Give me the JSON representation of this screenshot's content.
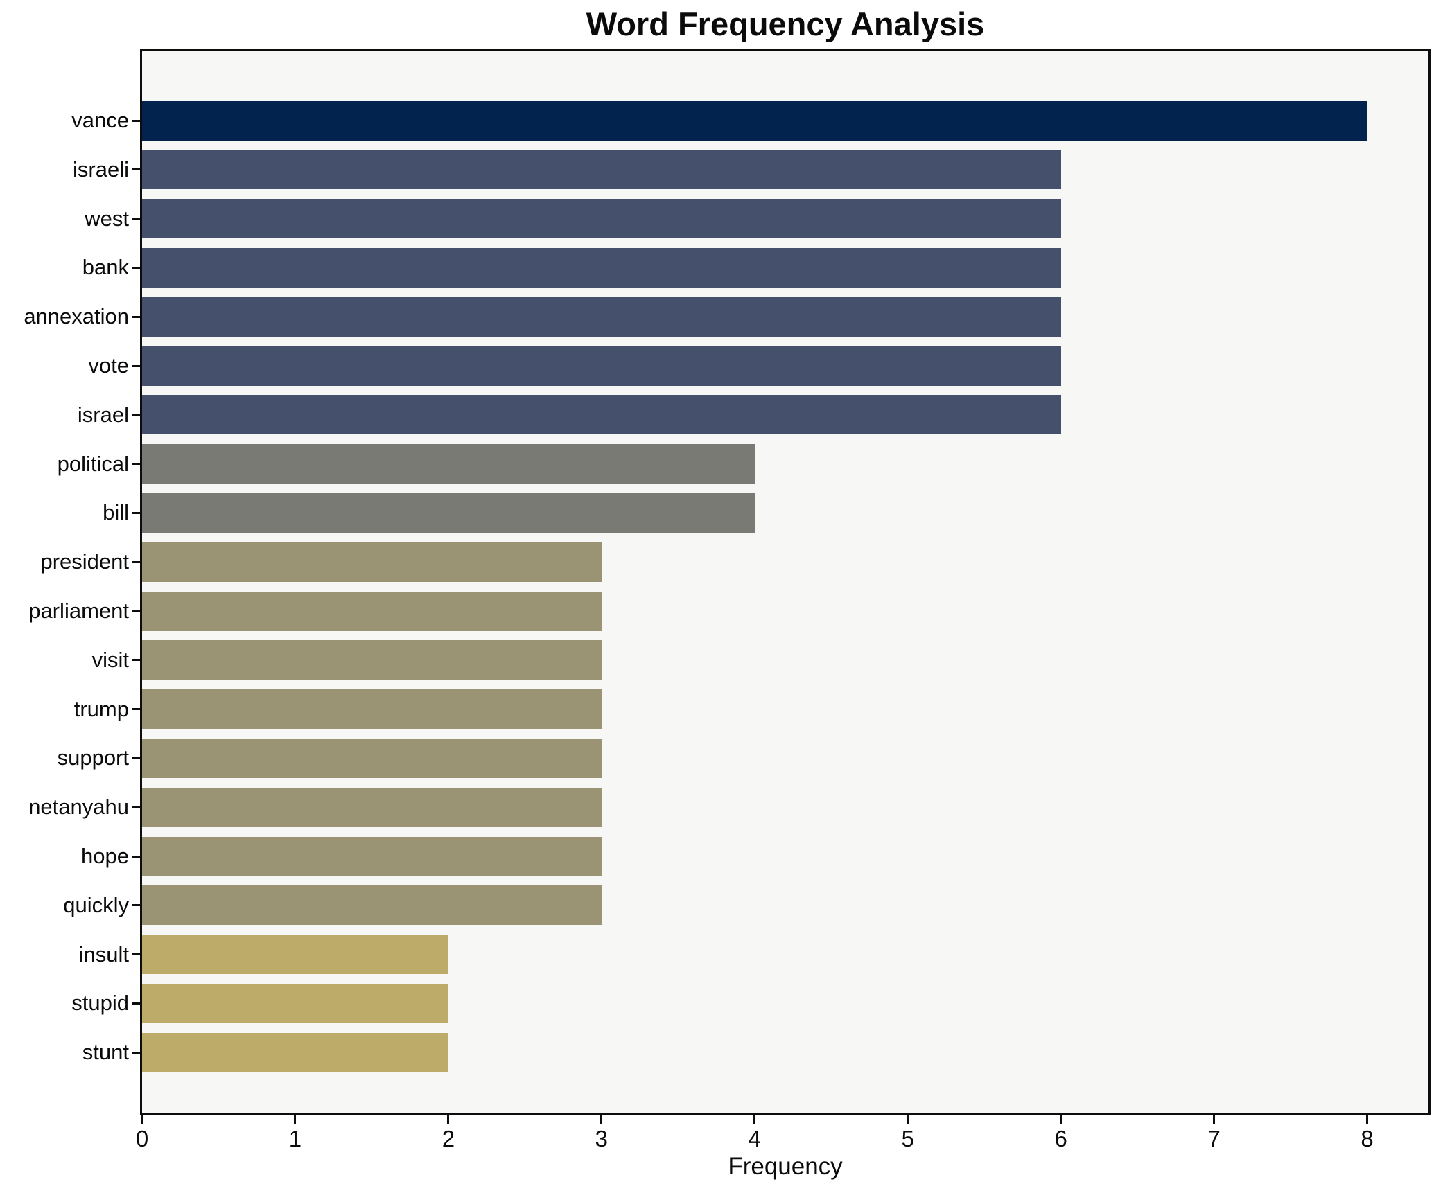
{
  "figure": {
    "background": "#ffffff",
    "plot_background": "#f7f7f5",
    "spine_color": "#0d0d0d",
    "text_color": "#0b0b0b"
  },
  "chart_data": {
    "type": "bar",
    "orientation": "horizontal",
    "title": "Word Frequency Analysis",
    "xlabel": "Frequency",
    "ylabel": "",
    "xlim": [
      0,
      8.4
    ],
    "xticks": [
      0,
      1,
      2,
      3,
      4,
      5,
      6,
      7,
      8
    ],
    "grid": false,
    "legend": false,
    "categories": [
      "vance",
      "israeli",
      "west",
      "bank",
      "annexation",
      "vote",
      "israel",
      "political",
      "bill",
      "president",
      "parliament",
      "visit",
      "trump",
      "support",
      "netanyahu",
      "hope",
      "quickly",
      "insult",
      "stupid",
      "stunt"
    ],
    "values": [
      8,
      6,
      6,
      6,
      6,
      6,
      6,
      4,
      4,
      3,
      3,
      3,
      3,
      3,
      3,
      3,
      3,
      2,
      2,
      2
    ],
    "bar_colors": [
      "#02234e",
      "#44506c",
      "#44506c",
      "#44506c",
      "#44506c",
      "#44506c",
      "#44506c",
      "#7a7a74",
      "#7a7a74",
      "#9a9374",
      "#9a9374",
      "#9a9374",
      "#9a9374",
      "#9a9374",
      "#9a9374",
      "#9a9374",
      "#9a9374",
      "#bcab69",
      "#bcab69",
      "#bcab69"
    ],
    "value_color_groups": {
      "8": "#02234e",
      "6": "#44506c",
      "4": "#7a7a74",
      "3": "#9a9374",
      "2": "#bcab69"
    }
  }
}
